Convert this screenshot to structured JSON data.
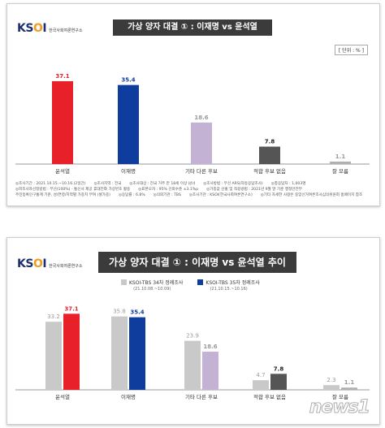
{
  "logo": {
    "mark_k": "K",
    "mark_s": "S",
    "mark_o": "O",
    "mark_i": "I",
    "text": "한국사회여론연구소"
  },
  "panel1": {
    "title": "가상  양자 대결 ① : 이재명 vs 윤석열",
    "unit": "[ 단위 : % ]",
    "notes": [
      [
        "◎조사기간 : 2021.10.15.~10.16.(2일간)",
        "◎조사지역 : 전국",
        "◎조사대상 : 전국 거주 만 18세 이상 남녀",
        "◎조사방법 : 무선 ARS(자동응답조사)",
        "◎총응답자 : 1,003명"
      ],
      [
        "◎피조사자선정방법 : 무선(100%) - 통신사 제공 휴대전화 가상번호 활용",
        "◎표본오차 : 95% 신뢰수준 ±3.1%p",
        "◎가중값 산출 및 적용방법 : 2021년 9월 말 기준 행정안전부"
      ],
      [
        "주민등록인구통계 기준, 성/연령/지역별 가중치 부여 (셀가중)",
        "◎응답률 : 6.8%",
        "◎의뢰기관 : TBS",
        "◎조사기관 : KSOI(한국사회여론연구소)",
        "◎기타 자세한 사항은 중앙선거여론조사심의위원회 홈페이지 참조"
      ]
    ]
  },
  "panel2": {
    "title": "가상  양자 대결 ① : 이재명 vs 윤석열 추이"
  },
  "watermark": "news1",
  "colors": {
    "yoon": "#e8202a",
    "lee": "#0f3d9e",
    "other": "#c3b2d3",
    "none": "#555555",
    "dunno": "#b0b0b0",
    "prev": "#c9c9c9",
    "prev_label": "#9a9a9a"
  },
  "chart_data": [
    {
      "type": "bar",
      "categories": [
        "윤석열",
        "이재명",
        "기타 다른 후보",
        "적합 후보 없음",
        "잘 모름"
      ],
      "values": [
        37.1,
        35.4,
        18.6,
        7.8,
        1.1
      ],
      "ylim": [
        0,
        40
      ],
      "grid": false,
      "title": "가상  양자 대결 ① : 이재명 vs 윤석열",
      "xlabel": "",
      "ylabel": "[ 단위 : % ]"
    },
    {
      "type": "bar",
      "categories": [
        "윤석열",
        "이재명",
        "기타 다른 후보",
        "적합 후보 없음",
        "잘 모름"
      ],
      "series": [
        {
          "name": "KSOI-TBS 34차 정례조사",
          "period": "(21.10.08.~10.09)",
          "values": [
            33.2,
            35.8,
            23.9,
            4.7,
            2.3
          ]
        },
        {
          "name": "KSOI-TBS 35차 정례조사",
          "period": "(21.10.15.~10.16)",
          "values": [
            37.1,
            35.4,
            18.6,
            7.8,
            1.1
          ]
        }
      ],
      "ylim": [
        0,
        40
      ],
      "grid": false,
      "legend": "top-center",
      "title": "가상  양자 대결 ① : 이재명 vs 윤석열 추이",
      "xlabel": "",
      "ylabel": ""
    }
  ]
}
